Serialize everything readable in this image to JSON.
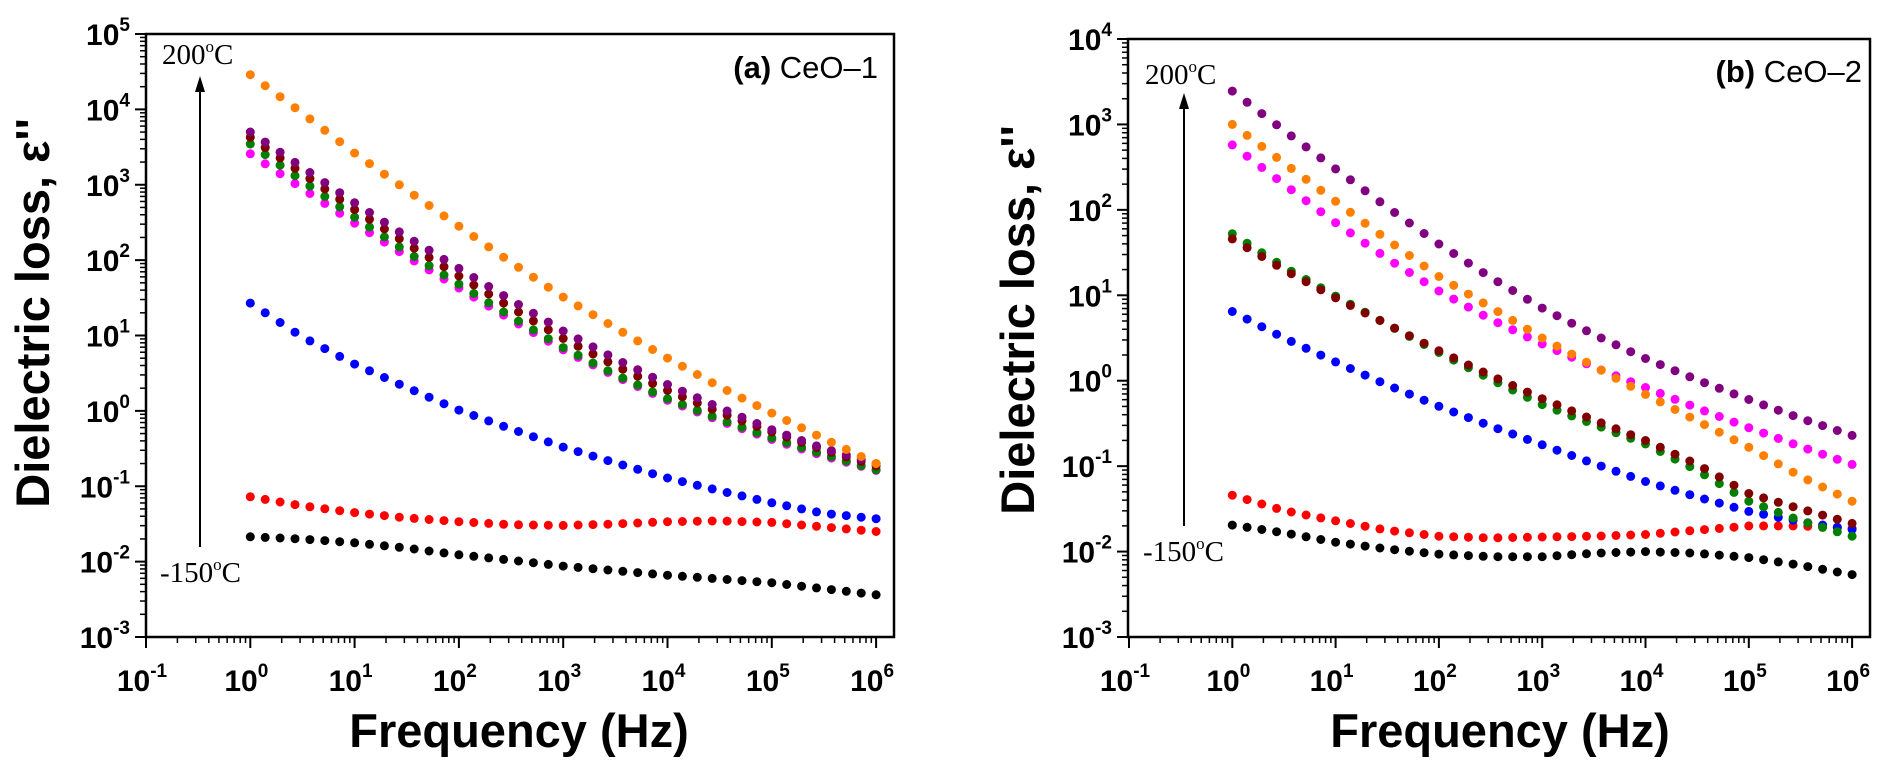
{
  "chart_data": [
    {
      "type": "scatter",
      "panel_label_prefix": "(a)",
      "panel_label_name": "CeO–1",
      "xlabel": "Frequency (Hz)",
      "ylabel": "Dielectric loss, ε''",
      "xscale": "log",
      "yscale": "log",
      "xlim": [
        0.1,
        1000000
      ],
      "ylim": [
        0.001,
        100000
      ],
      "tick_base": "10",
      "x_tick_exponents": [
        "-1",
        "0",
        "1",
        "2",
        "3",
        "4",
        "5",
        "6"
      ],
      "y_tick_exponents": [
        "-3",
        "-2",
        "-1",
        "0",
        "1",
        "2",
        "3",
        "4",
        "5"
      ],
      "annotation_top": {
        "value": "200",
        "sup": "o",
        "unit": "C"
      },
      "annotation_bottom": {
        "value": "-150",
        "sup": "o",
        "unit": "C"
      },
      "x_log10": [
        0,
        0.5,
        1,
        1.5,
        2,
        2.5,
        3,
        3.5,
        4,
        4.5,
        5,
        5.5,
        6
      ],
      "points_per_decade": 7,
      "series": [
        {
          "color": "#000000",
          "log10_values": [
            -1.67,
            -1.7,
            -1.75,
            -1.82,
            -1.91,
            -1.98,
            -2.06,
            -2.12,
            -2.18,
            -2.23,
            -2.28,
            -2.36,
            -2.44
          ]
        },
        {
          "color": "#ff0000",
          "log10_values": [
            -1.14,
            -1.26,
            -1.35,
            -1.42,
            -1.47,
            -1.51,
            -1.52,
            -1.5,
            -1.47,
            -1.46,
            -1.48,
            -1.54,
            -1.6
          ]
        },
        {
          "color": "#0000ff",
          "log10_values": [
            1.43,
            0.98,
            0.62,
            0.31,
            0.01,
            -0.24,
            -0.48,
            -0.69,
            -0.89,
            -1.06,
            -1.22,
            -1.36,
            -1.43
          ]
        },
        {
          "color": "#ff00ff",
          "log10_values": [
            3.41,
            2.95,
            2.49,
            2.05,
            1.63,
            1.21,
            0.81,
            0.46,
            0.14,
            -0.13,
            -0.38,
            -0.6,
            -0.79
          ]
        },
        {
          "color": "#008000",
          "log10_values": [
            3.54,
            3.05,
            2.57,
            2.11,
            1.68,
            1.25,
            0.84,
            0.48,
            0.16,
            -0.11,
            -0.36,
            -0.58,
            -0.78
          ]
        },
        {
          "color": "#800000",
          "log10_values": [
            3.63,
            3.15,
            2.67,
            2.22,
            1.79,
            1.37,
            0.96,
            0.6,
            0.27,
            -0.02,
            -0.28,
            -0.52,
            -0.73
          ]
        },
        {
          "color": "#800080",
          "log10_values": [
            3.7,
            3.23,
            2.76,
            2.31,
            1.89,
            1.47,
            1.06,
            0.69,
            0.35,
            0.04,
            -0.25,
            -0.5,
            -0.7
          ]
        },
        {
          "color": "#ff8000",
          "log10_values": [
            4.46,
            3.95,
            3.42,
            2.93,
            2.45,
            1.97,
            1.51,
            1.1,
            0.7,
            0.32,
            -0.03,
            -0.37,
            -0.7
          ]
        }
      ]
    },
    {
      "type": "scatter",
      "panel_label_prefix": "(b)",
      "panel_label_name": "CeO–2",
      "xlabel": "Frequency (Hz)",
      "ylabel": "Dielectric loss, ε''",
      "xscale": "log",
      "yscale": "log",
      "xlim": [
        0.1,
        1000000
      ],
      "ylim": [
        0.001,
        10000
      ],
      "tick_base": "10",
      "x_tick_exponents": [
        "-1",
        "0",
        "1",
        "2",
        "3",
        "4",
        "5",
        "6"
      ],
      "y_tick_exponents": [
        "-3",
        "-2",
        "-1",
        "0",
        "1",
        "2",
        "3",
        "4"
      ],
      "annotation_top": {
        "value": "200",
        "sup": "o",
        "unit": "C"
      },
      "annotation_bottom": {
        "value": "-150",
        "sup": "o",
        "unit": "C"
      },
      "x_log10": [
        0,
        0.5,
        1,
        1.5,
        2,
        2.5,
        3,
        3.5,
        4,
        4.5,
        5,
        5.5,
        6
      ],
      "points_per_decade": 7,
      "series": [
        {
          "color": "#000000",
          "log10_values": [
            -1.69,
            -1.78,
            -1.89,
            -1.97,
            -2.03,
            -2.06,
            -2.06,
            -2.02,
            -2.0,
            -2.02,
            -2.07,
            -2.16,
            -2.27
          ]
        },
        {
          "color": "#ff0000",
          "log10_values": [
            -1.34,
            -1.52,
            -1.64,
            -1.75,
            -1.82,
            -1.84,
            -1.83,
            -1.82,
            -1.8,
            -1.75,
            -1.7,
            -1.7,
            -1.73
          ]
        },
        {
          "color": "#0000ff",
          "log10_values": [
            0.81,
            0.5,
            0.22,
            -0.05,
            -0.3,
            -0.53,
            -0.75,
            -0.97,
            -1.18,
            -1.36,
            -1.53,
            -1.65,
            -1.74
          ]
        },
        {
          "color": "#ff00ff",
          "log10_values": [
            2.76,
            2.3,
            1.85,
            1.43,
            1.05,
            0.72,
            0.43,
            0.16,
            -0.08,
            -0.32,
            -0.55,
            -0.77,
            -0.98
          ]
        },
        {
          "color": "#008000",
          "log10_values": [
            1.72,
            1.33,
            0.99,
            0.66,
            0.33,
            0.02,
            -0.28,
            -0.51,
            -0.74,
            -1.05,
            -1.41,
            -1.64,
            -1.82
          ]
        },
        {
          "color": "#800000",
          "log10_values": [
            1.66,
            1.3,
            0.97,
            0.66,
            0.35,
            0.06,
            -0.21,
            -0.46,
            -0.7,
            -0.98,
            -1.32,
            -1.5,
            -1.67
          ]
        },
        {
          "color": "#ff8000",
          "log10_values": [
            3.0,
            2.55,
            2.1,
            1.65,
            1.22,
            0.86,
            0.5,
            0.17,
            -0.16,
            -0.47,
            -0.78,
            -1.12,
            -1.41
          ]
        },
        {
          "color": "#800080",
          "log10_values": [
            3.39,
            2.93,
            2.48,
            2.03,
            1.6,
            1.21,
            0.85,
            0.54,
            0.26,
            0.01,
            -0.22,
            -0.44,
            -0.64
          ]
        }
      ]
    }
  ]
}
